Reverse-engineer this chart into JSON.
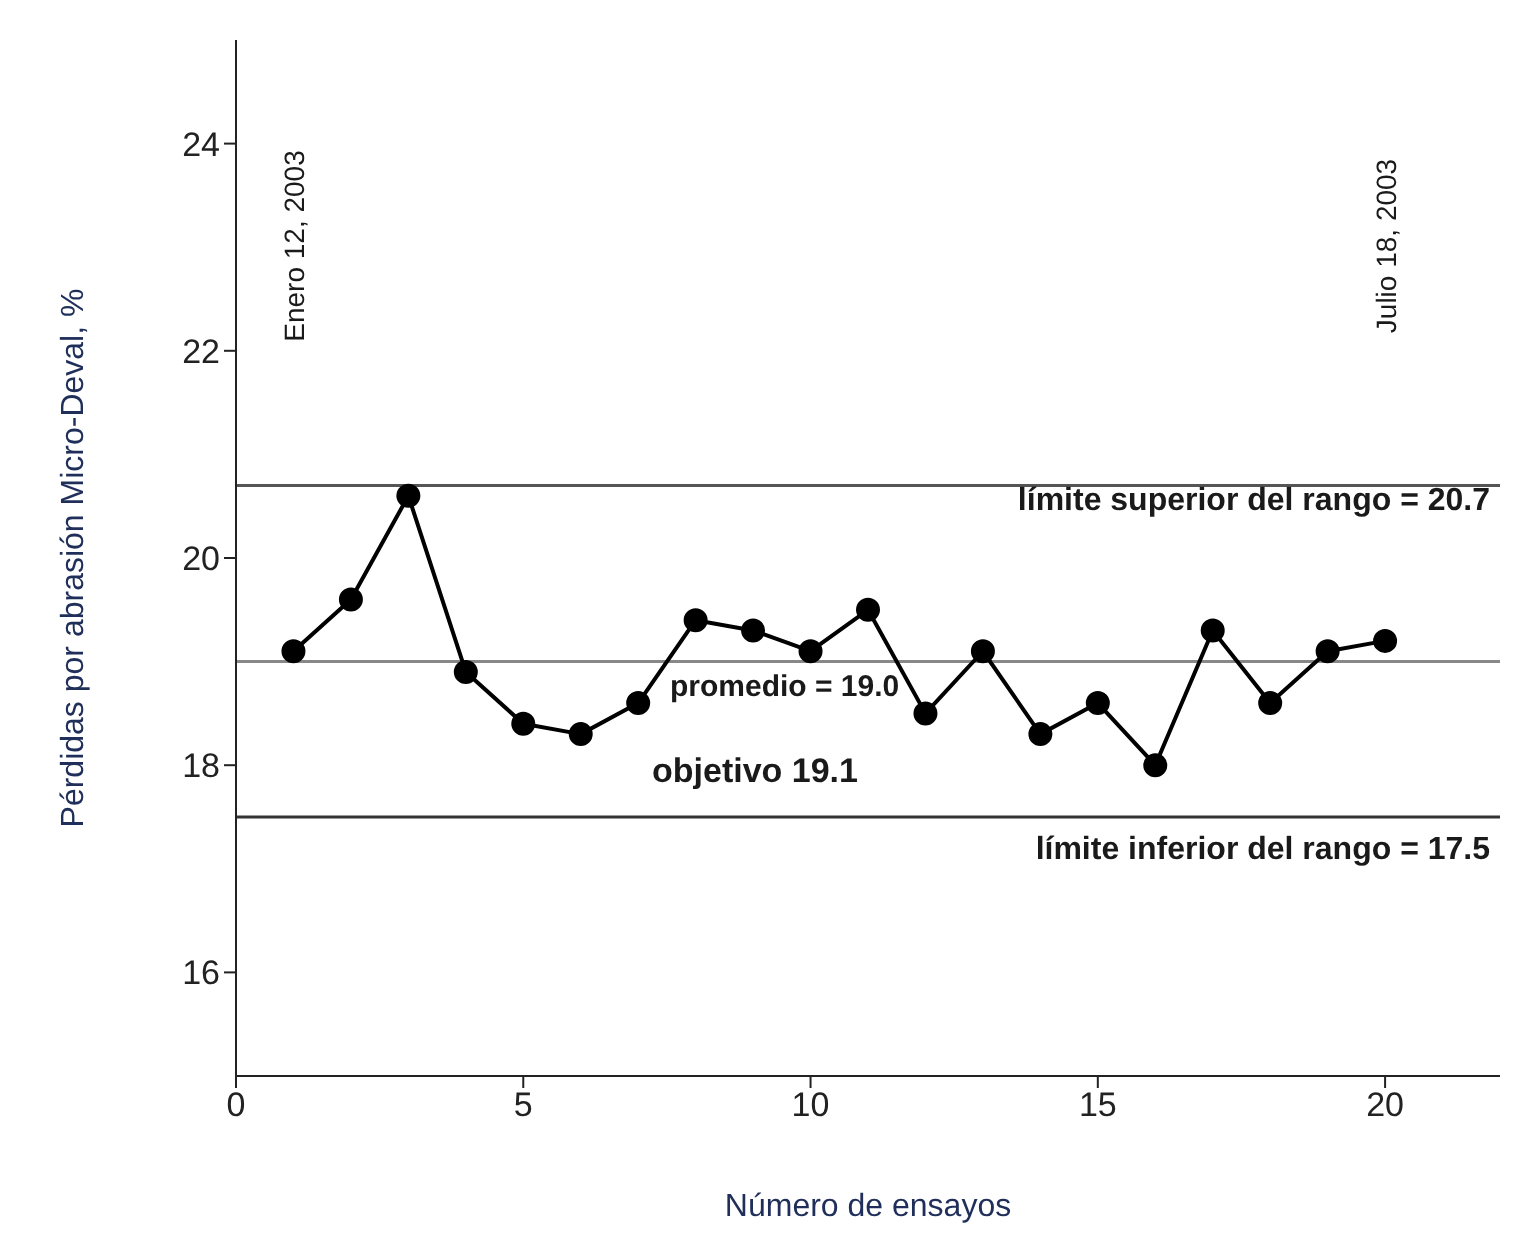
{
  "chart_data": {
    "type": "line",
    "xlabel": "Número de ensayos",
    "ylabel": "Pérdidas por abrasión Micro-Deval, %",
    "x": [
      1,
      2,
      3,
      4,
      5,
      6,
      7,
      8,
      9,
      10,
      11,
      12,
      13,
      14,
      15,
      16,
      17,
      18,
      19,
      20
    ],
    "series": [
      {
        "color": "#000000",
        "values": [
          19.1,
          19.6,
          20.6,
          18.9,
          18.4,
          18.3,
          18.6,
          19.4,
          19.3,
          19.1,
          19.5,
          18.5,
          19.1,
          18.3,
          18.6,
          18.0,
          19.3,
          18.6,
          19.1,
          19.2
        ]
      }
    ],
    "marker": "circle",
    "line_style": "solid",
    "grid": false,
    "legend": false,
    "xlim": [
      0,
      22
    ],
    "xticks": [
      0,
      5,
      10,
      15,
      20
    ],
    "ylim": [
      15,
      25
    ],
    "yticks": [
      16,
      18,
      20,
      22,
      24
    ],
    "ref_lines": [
      {
        "axis": "y",
        "value": 20.7,
        "label": "límite superior del rango = 20.7",
        "color": "#555555"
      },
      {
        "axis": "y",
        "value": 19.0,
        "label": "promedio = 19.0",
        "color": "#888888"
      },
      {
        "axis": "y",
        "value": 17.5,
        "label": "límite inferior del rango = 17.5",
        "color": "#333333"
      }
    ],
    "annotations": [
      "Enero 12, 2003",
      "Julio 18, 2003",
      "objetivo 19.1"
    ]
  }
}
